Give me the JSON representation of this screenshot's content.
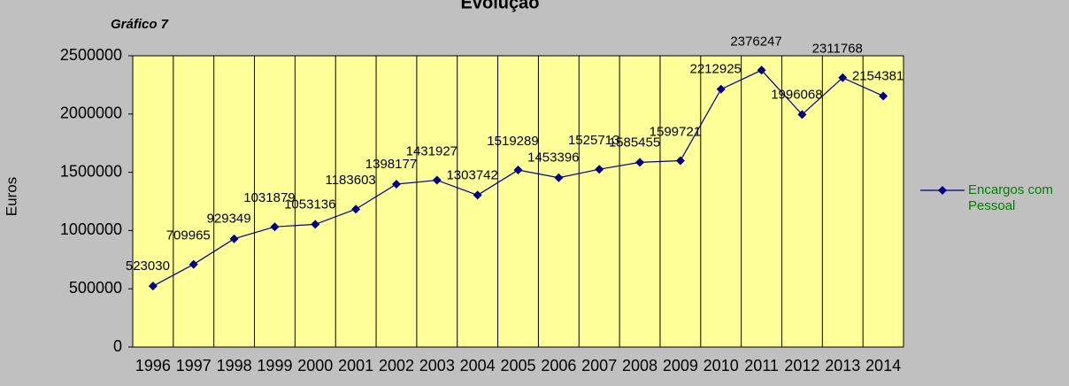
{
  "chart_data": {
    "type": "line",
    "title": "Evolução",
    "subtitle": "Gráfico 7",
    "y_label": "Euros",
    "categories": [
      "1996",
      "1997",
      "1998",
      "1999",
      "2000",
      "2001",
      "2002",
      "2003",
      "2004",
      "2005",
      "2006",
      "2007",
      "2008",
      "2009",
      "2010",
      "2011",
      "2012",
      "2013",
      "2014"
    ],
    "series": [
      {
        "name": "Encargos com Pessoal",
        "color": "#000080",
        "values": [
          523030,
          709965,
          929349,
          1031879,
          1053136,
          1183603,
          1398177,
          1431927,
          1303742,
          1519289,
          1453396,
          1525713,
          1585455,
          1599721,
          2212925,
          2376247,
          1996068,
          2311768,
          2154381
        ]
      }
    ],
    "ylim": [
      0,
      2500000
    ],
    "yticks": [
      0,
      500000,
      1000000,
      1500000,
      2000000,
      2500000
    ],
    "grid": false,
    "legend": "right"
  }
}
